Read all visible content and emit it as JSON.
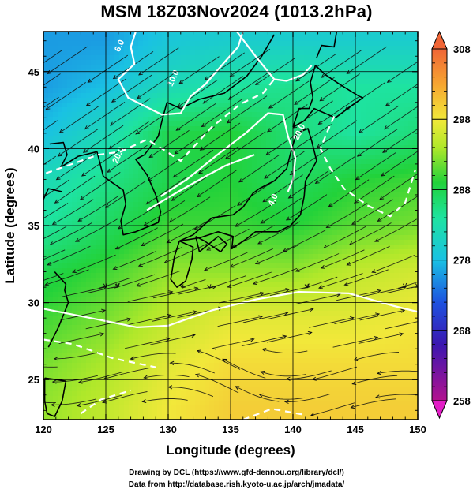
{
  "chart_data": {
    "type": "heatmap",
    "title": "MSM 18Z03Nov2024 (1013.2hPa)",
    "xlabel": "Longitude (degrees)",
    "ylabel": "Latitude  (degrees)",
    "xlim": [
      120,
      150
    ],
    "ylim": [
      22.4,
      47.6
    ],
    "x_ticks": [
      120,
      125,
      130,
      135,
      140,
      145,
      150
    ],
    "y_ticks": [
      25,
      30,
      35,
      40,
      45
    ],
    "grid": true,
    "colorbar": {
      "min": 258,
      "max": 308,
      "ticks": [
        258,
        268,
        278,
        288,
        298,
        308
      ],
      "extend": "both",
      "position": "right"
    },
    "temperature_field_K": {
      "lat": [
        47,
        44,
        41,
        38,
        35,
        32,
        29,
        26,
        23
      ],
      "lon": [
        120,
        125,
        130,
        135,
        140,
        145,
        150
      ],
      "values": [
        [
          276,
          276,
          279,
          280,
          280,
          280,
          280
        ],
        [
          276,
          278,
          282,
          284,
          285,
          284,
          284
        ],
        [
          278,
          282,
          288,
          289,
          286,
          284,
          286
        ],
        [
          282,
          285,
          288,
          289,
          287,
          289,
          290
        ],
        [
          284,
          287,
          290,
          290,
          289,
          291,
          292
        ],
        [
          288,
          290,
          293,
          293,
          293,
          295,
          296
        ],
        [
          290,
          292,
          295,
          297,
          297,
          297,
          298
        ],
        [
          292,
          294,
          297,
          299,
          299,
          299,
          299
        ],
        [
          293,
          295,
          298,
          300,
          300,
          300,
          300
        ]
      ]
    },
    "contours": [
      {
        "label": "6.0",
        "label_pos": [
          126.3,
          46.6
        ]
      },
      {
        "label": "10.0",
        "label_pos": [
          130.6,
          44.5
        ]
      },
      {
        "label": "20.0",
        "label_pos": [
          126.2,
          39.5
        ]
      },
      {
        "label": "20.0",
        "label_pos": [
          140.7,
          41.0
        ]
      },
      {
        "label": "4.0",
        "label_pos": [
          138.6,
          36.6
        ]
      }
    ],
    "streamlines": "wind streamlines with arrowheads overlaid on the field"
  },
  "footer": {
    "line1": "Drawing by DCL (https://www.gfd-dennou.org/library/dcl/)",
    "line2": "Data from http://database.rish.kyoto-u.ac.jp/arch/jmadata/"
  }
}
